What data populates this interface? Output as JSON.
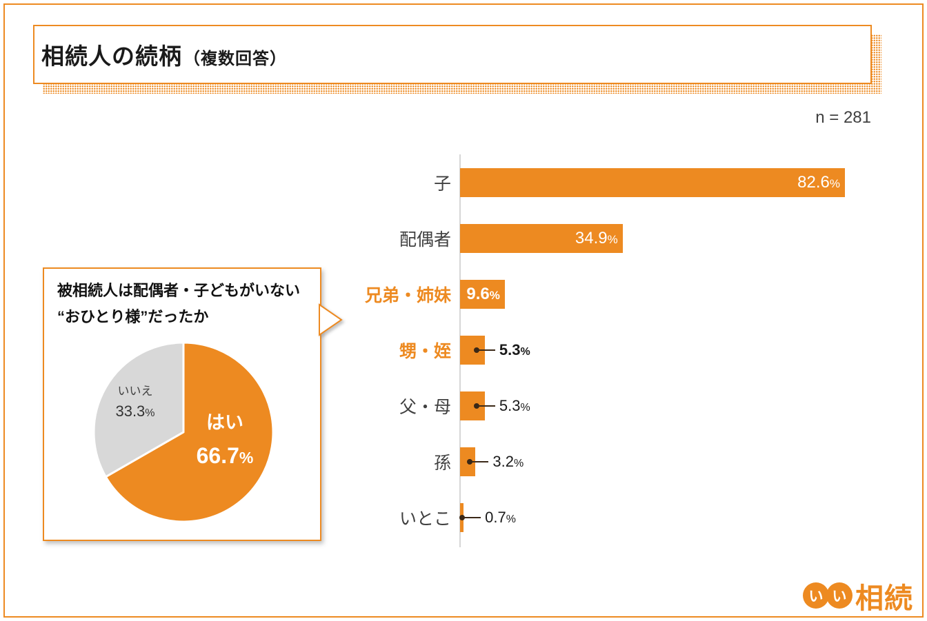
{
  "header": {
    "title": "相続人の続柄",
    "title_note": "（複数回答）",
    "sample_label": "n = 281"
  },
  "chart_data": [
    {
      "type": "bar",
      "title": "相続人の続柄（複数回答）",
      "orientation": "horizontal",
      "n": 281,
      "unit": "%",
      "xlim": [
        0,
        90
      ],
      "grid": false,
      "bar_color": "#ED8A21",
      "categories": [
        "子",
        "配偶者",
        "兄弟・姉妹",
        "甥・姪",
        "父・母",
        "孫",
        "いとこ"
      ],
      "values": [
        82.6,
        34.9,
        9.6,
        5.3,
        5.3,
        3.2,
        0.7
      ],
      "bars": [
        {
          "label": "子",
          "value": "82.6",
          "pct": 82.6,
          "accent": false,
          "value_position": "inside"
        },
        {
          "label": "配偶者",
          "value": "34.9",
          "pct": 34.9,
          "accent": false,
          "value_position": "inside"
        },
        {
          "label": "兄弟・姉妹",
          "value": "9.6",
          "pct": 9.6,
          "accent": true,
          "value_position": "inside"
        },
        {
          "label": "甥・姪",
          "value": "5.3",
          "pct": 5.3,
          "accent": true,
          "value_position": "outside"
        },
        {
          "label": "父・母",
          "value": "5.3",
          "pct": 5.3,
          "accent": false,
          "value_position": "outside"
        },
        {
          "label": "孫",
          "value": "3.2",
          "pct": 3.2,
          "accent": false,
          "value_position": "outside"
        },
        {
          "label": "いとこ",
          "value": "0.7",
          "pct": 0.7,
          "accent": false,
          "value_position": "outside"
        }
      ]
    },
    {
      "type": "pie",
      "title": "被相続人は配偶者・子どもがいない“おひとり様”だったか",
      "unit": "%",
      "start_angle": "top",
      "direction": "clockwise",
      "slices": [
        {
          "label": "はい",
          "value": 66.7,
          "value_text": "66.7",
          "color": "#ED8A21"
        },
        {
          "label": "いいえ",
          "value": 33.3,
          "value_text": "33.3",
          "color": "#D8D8D8"
        }
      ]
    }
  ],
  "callout": {
    "line1": "被相続人は配偶者・子どもがいない",
    "line2": "“おひとり様”だったか"
  },
  "logo": {
    "circle1": "い",
    "circle2": "い",
    "text": "相続"
  },
  "colors": {
    "accent_orange": "#ED8A21",
    "pie_gray": "#D8D8D8",
    "leader_brown": "#3A2817"
  }
}
